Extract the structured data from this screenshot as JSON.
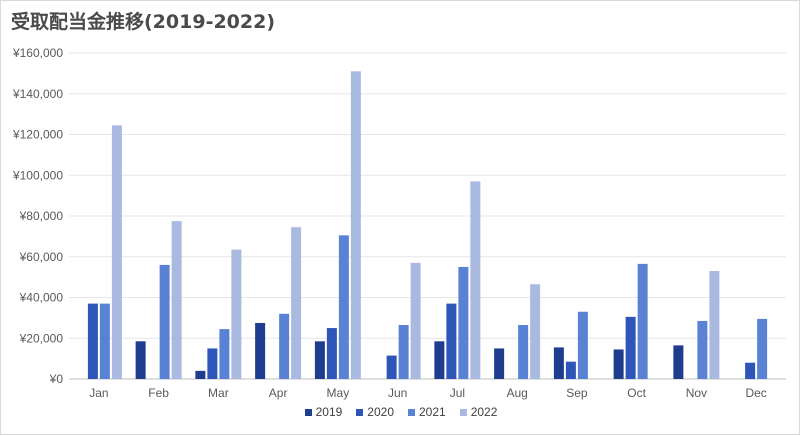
{
  "chart_data": {
    "type": "bar",
    "title": "受取配当金推移(2019-2022)",
    "categories": [
      "Jan",
      "Feb",
      "Mar",
      "Apr",
      "May",
      "Jun",
      "Jul",
      "Aug",
      "Sep",
      "Oct",
      "Nov",
      "Dec"
    ],
    "ylim": [
      0,
      160000
    ],
    "yticks": [
      "¥0",
      "¥20,000",
      "¥40,000",
      "¥60,000",
      "¥80,000",
      "¥100,000",
      "¥120,000",
      "¥140,000",
      "¥160,000"
    ],
    "grid": true,
    "legend_position": "bottom",
    "series": [
      {
        "name": "2019",
        "color": "#1f3c8f",
        "values": [
          0,
          18500,
          4000,
          27500,
          18500,
          0,
          18500,
          15000,
          15500,
          14500,
          16500,
          0
        ]
      },
      {
        "name": "2020",
        "color": "#2e56b8",
        "values": [
          37000,
          0,
          15000,
          0,
          25000,
          11500,
          37000,
          0,
          8500,
          30500,
          0,
          8000
        ]
      },
      {
        "name": "2021",
        "color": "#5a82d4",
        "values": [
          37000,
          56000,
          24500,
          32000,
          70500,
          26500,
          55000,
          26500,
          33000,
          56500,
          28500,
          29500
        ]
      },
      {
        "name": "2022",
        "color": "#a9b9e0",
        "values": [
          124500,
          77500,
          63500,
          74500,
          151000,
          57000,
          97000,
          46500,
          0,
          0,
          53000,
          0
        ]
      }
    ]
  }
}
